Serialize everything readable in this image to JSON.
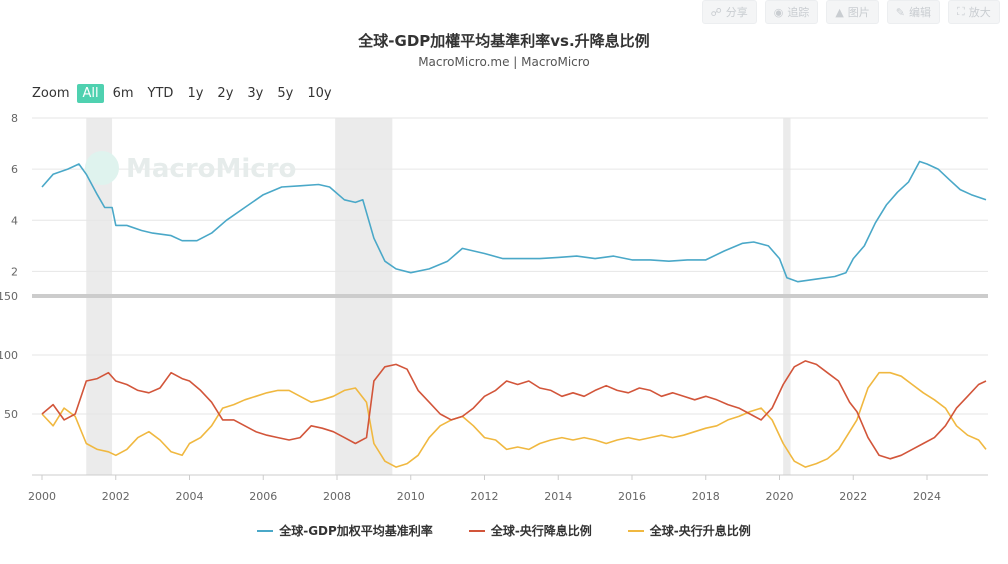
{
  "toolbar": {
    "buttons": [
      {
        "label": "分享",
        "icon": "share-icon"
      },
      {
        "label": "追踪",
        "icon": "track-icon"
      },
      {
        "label": "图片",
        "icon": "image-icon"
      },
      {
        "label": "编辑",
        "icon": "edit-icon"
      },
      {
        "label": "放大",
        "icon": "expand-icon"
      }
    ]
  },
  "zoom": {
    "label": "Zoom",
    "options": [
      "All",
      "6m",
      "YTD",
      "1y",
      "2y",
      "3y",
      "5y",
      "10y"
    ],
    "selected": "All"
  },
  "watermark": "MacroMicro",
  "colors": {
    "gdp": "#4aa8c8",
    "cut": "#d2553a",
    "hike": "#f0b840",
    "active": "#4fd1b0",
    "band": "#ebebeb"
  },
  "chart_data": [
    {
      "type": "line",
      "title": "全球-GDP加權平均基準利率vs.升降息比例",
      "subtitle": "MacroMicro.me | MacroMicro",
      "xlim": [
        2000.0,
        2025.6
      ],
      "x_ticks": [
        "2000",
        "2002",
        "2004",
        "2006",
        "2008",
        "2010",
        "2012",
        "2014",
        "2016",
        "2018",
        "2020",
        "2022",
        "2024"
      ],
      "ylim": [
        1,
        8
      ],
      "y_ticks": [
        2,
        4,
        6,
        8
      ],
      "shaded_periods": [
        [
          2001.2,
          2001.9
        ],
        [
          2007.95,
          2009.5
        ],
        [
          2020.1,
          2020.3
        ]
      ],
      "series": [
        {
          "name": "全球-GDP加权平均基准利率",
          "color": "#4aa8c8",
          "x": [
            2000.0,
            2000.3,
            2000.7,
            2001.0,
            2001.2,
            2001.5,
            2001.7,
            2001.9,
            2002.0,
            2002.3,
            2002.7,
            2003.0,
            2003.5,
            2003.8,
            2004.2,
            2004.6,
            2005.0,
            2005.5,
            2006.0,
            2006.5,
            2007.0,
            2007.5,
            2007.8,
            2008.2,
            2008.5,
            2008.7,
            2009.0,
            2009.3,
            2009.6,
            2010.0,
            2010.5,
            2011.0,
            2011.4,
            2012.0,
            2012.5,
            2013.0,
            2013.5,
            2014.0,
            2014.5,
            2015.0,
            2015.5,
            2016.0,
            2016.5,
            2017.0,
            2017.5,
            2018.0,
            2018.5,
            2019.0,
            2019.3,
            2019.7,
            2020.0,
            2020.2,
            2020.5,
            2021.0,
            2021.5,
            2021.8,
            2022.0,
            2022.3,
            2022.6,
            2022.9,
            2023.2,
            2023.5,
            2023.8,
            2024.0,
            2024.3,
            2024.6,
            2024.9,
            2025.2,
            2025.6
          ],
          "values": [
            5.3,
            5.8,
            6.0,
            6.2,
            5.8,
            5.0,
            4.5,
            4.5,
            3.8,
            3.8,
            3.6,
            3.5,
            3.4,
            3.2,
            3.2,
            3.5,
            4.0,
            4.5,
            5.0,
            5.3,
            5.35,
            5.4,
            5.3,
            4.8,
            4.7,
            4.8,
            3.3,
            2.4,
            2.1,
            1.95,
            2.1,
            2.4,
            2.9,
            2.7,
            2.5,
            2.5,
            2.5,
            2.55,
            2.6,
            2.5,
            2.6,
            2.45,
            2.45,
            2.4,
            2.45,
            2.45,
            2.8,
            3.1,
            3.15,
            3.0,
            2.5,
            1.75,
            1.6,
            1.7,
            1.8,
            1.95,
            2.5,
            3.0,
            3.9,
            4.6,
            5.1,
            5.5,
            6.3,
            6.2,
            6.0,
            5.6,
            5.2,
            5.0,
            4.8
          ]
        }
      ]
    },
    {
      "type": "line",
      "xlim": [
        2000.0,
        2025.6
      ],
      "x_ticks": [
        "2000",
        "2002",
        "2004",
        "2006",
        "2008",
        "2010",
        "2012",
        "2014",
        "2016",
        "2018",
        "2020",
        "2022",
        "2024"
      ],
      "ylim": [
        0,
        150
      ],
      "y_ticks": [
        50,
        100,
        150
      ],
      "series": [
        {
          "name": "全球-央行降息比例",
          "color": "#d2553a",
          "x": [
            2000.0,
            2000.3,
            2000.6,
            2000.9,
            2001.2,
            2001.5,
            2001.8,
            2002.0,
            2002.3,
            2002.6,
            2002.9,
            2003.2,
            2003.5,
            2003.8,
            2004.0,
            2004.3,
            2004.6,
            2004.9,
            2005.2,
            2005.5,
            2005.8,
            2006.1,
            2006.4,
            2006.7,
            2007.0,
            2007.3,
            2007.6,
            2007.9,
            2008.2,
            2008.5,
            2008.8,
            2009.0,
            2009.3,
            2009.6,
            2009.9,
            2010.2,
            2010.5,
            2010.8,
            2011.1,
            2011.4,
            2011.7,
            2012.0,
            2012.3,
            2012.6,
            2012.9,
            2013.2,
            2013.5,
            2013.8,
            2014.1,
            2014.4,
            2014.7,
            2015.0,
            2015.3,
            2015.6,
            2015.9,
            2016.2,
            2016.5,
            2016.8,
            2017.1,
            2017.4,
            2017.7,
            2018.0,
            2018.3,
            2018.6,
            2018.9,
            2019.2,
            2019.5,
            2019.8,
            2020.1,
            2020.4,
            2020.7,
            2021.0,
            2021.3,
            2021.6,
            2021.9,
            2022.1,
            2022.4,
            2022.7,
            2023.0,
            2023.3,
            2023.6,
            2023.9,
            2024.2,
            2024.5,
            2024.8,
            2025.1,
            2025.4,
            2025.6
          ],
          "values": [
            50,
            58,
            45,
            50,
            78,
            80,
            85,
            78,
            75,
            70,
            68,
            72,
            85,
            80,
            78,
            70,
            60,
            45,
            45,
            40,
            35,
            32,
            30,
            28,
            30,
            40,
            38,
            35,
            30,
            25,
            30,
            78,
            90,
            92,
            88,
            70,
            60,
            50,
            45,
            48,
            55,
            65,
            70,
            78,
            75,
            78,
            72,
            70,
            65,
            68,
            65,
            70,
            74,
            70,
            68,
            72,
            70,
            65,
            68,
            65,
            62,
            65,
            62,
            58,
            55,
            50,
            45,
            55,
            75,
            90,
            95,
            92,
            85,
            78,
            60,
            52,
            30,
            15,
            12,
            15,
            20,
            25,
            30,
            40,
            55,
            65,
            75,
            78
          ]
        },
        {
          "name": "全球-央行升息比例",
          "color": "#f0b840",
          "x": [
            2000.0,
            2000.3,
            2000.6,
            2000.9,
            2001.2,
            2001.5,
            2001.8,
            2002.0,
            2002.3,
            2002.6,
            2002.9,
            2003.2,
            2003.5,
            2003.8,
            2004.0,
            2004.3,
            2004.6,
            2004.9,
            2005.2,
            2005.5,
            2005.8,
            2006.1,
            2006.4,
            2006.7,
            2007.0,
            2007.3,
            2007.6,
            2007.9,
            2008.2,
            2008.5,
            2008.8,
            2009.0,
            2009.3,
            2009.6,
            2009.9,
            2010.2,
            2010.5,
            2010.8,
            2011.1,
            2011.4,
            2011.7,
            2012.0,
            2012.3,
            2012.6,
            2012.9,
            2013.2,
            2013.5,
            2013.8,
            2014.1,
            2014.4,
            2014.7,
            2015.0,
            2015.3,
            2015.6,
            2015.9,
            2016.2,
            2016.5,
            2016.8,
            2017.1,
            2017.4,
            2017.7,
            2018.0,
            2018.3,
            2018.6,
            2018.9,
            2019.2,
            2019.5,
            2019.8,
            2020.1,
            2020.4,
            2020.7,
            2021.0,
            2021.3,
            2021.6,
            2021.9,
            2022.1,
            2022.4,
            2022.7,
            2023.0,
            2023.3,
            2023.6,
            2023.9,
            2024.2,
            2024.5,
            2024.8,
            2025.1,
            2025.4,
            2025.6
          ],
          "values": [
            50,
            40,
            55,
            48,
            25,
            20,
            18,
            15,
            20,
            30,
            35,
            28,
            18,
            15,
            25,
            30,
            40,
            55,
            58,
            62,
            65,
            68,
            70,
            70,
            65,
            60,
            62,
            65,
            70,
            72,
            60,
            25,
            10,
            5,
            8,
            15,
            30,
            40,
            45,
            48,
            40,
            30,
            28,
            20,
            22,
            20,
            25,
            28,
            30,
            28,
            30,
            28,
            25,
            28,
            30,
            28,
            30,
            32,
            30,
            32,
            35,
            38,
            40,
            45,
            48,
            52,
            55,
            45,
            25,
            10,
            5,
            8,
            12,
            20,
            35,
            45,
            72,
            85,
            85,
            82,
            75,
            68,
            62,
            55,
            40,
            32,
            28,
            20
          ]
        }
      ]
    }
  ]
}
